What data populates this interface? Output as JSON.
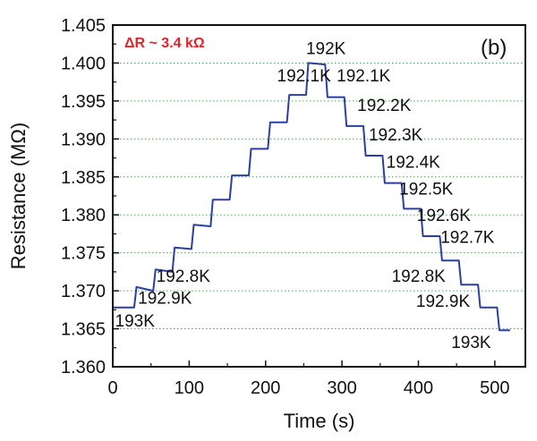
{
  "chart_data": {
    "type": "line",
    "panel_label": "(b)",
    "xlabel": "Time (s)",
    "ylabel": "Resistance (MΩ)",
    "xlim": [
      0,
      540
    ],
    "ylim": [
      1.36,
      1.405
    ],
    "x_ticks": [
      0,
      100,
      200,
      300,
      400,
      500
    ],
    "y_ticks": [
      1.36,
      1.365,
      1.37,
      1.375,
      1.38,
      1.385,
      1.39,
      1.395,
      1.4,
      1.405
    ],
    "y_tick_labels": [
      "1.360",
      "1.365",
      "1.370",
      "1.375",
      "1.380",
      "1.385",
      "1.390",
      "1.395",
      "1.400",
      "1.405"
    ],
    "grid": "horizontal dotted at y ticks",
    "colors": {
      "line": "#2a3fa5",
      "grid": "#4caf50",
      "delta_label": "#e8202a"
    },
    "delta_label": "ΔR ~ 3.4 kΩ",
    "series": [
      {
        "points": [
          [
            0,
            1.3678
          ],
          [
            28,
            1.3678
          ],
          [
            31,
            1.3705
          ],
          [
            53,
            1.37
          ],
          [
            56,
            1.3728
          ],
          [
            78,
            1.3725
          ],
          [
            81,
            1.3757
          ],
          [
            103,
            1.3755
          ],
          [
            106,
            1.3787
          ],
          [
            128,
            1.3785
          ],
          [
            131,
            1.382
          ],
          [
            153,
            1.382
          ],
          [
            156,
            1.3852
          ],
          [
            178,
            1.3852
          ],
          [
            181,
            1.3887
          ],
          [
            203,
            1.3887
          ],
          [
            206,
            1.3922
          ],
          [
            228,
            1.3922
          ],
          [
            231,
            1.3958
          ],
          [
            253,
            1.3958
          ],
          [
            256,
            1.4
          ],
          [
            278,
            1.3998
          ],
          [
            281,
            1.3955
          ],
          [
            303,
            1.3955
          ],
          [
            306,
            1.3917
          ],
          [
            328,
            1.3917
          ],
          [
            331,
            1.3878
          ],
          [
            353,
            1.3878
          ],
          [
            356,
            1.3842
          ],
          [
            378,
            1.3842
          ],
          [
            381,
            1.3808
          ],
          [
            403,
            1.3808
          ],
          [
            406,
            1.3772
          ],
          [
            428,
            1.3772
          ],
          [
            431,
            1.374
          ],
          [
            453,
            1.374
          ],
          [
            456,
            1.3708
          ],
          [
            478,
            1.3708
          ],
          [
            481,
            1.3678
          ],
          [
            503,
            1.3678
          ],
          [
            506,
            1.3648
          ],
          [
            520,
            1.3648
          ]
        ]
      }
    ],
    "annotations": [
      {
        "text": "193K",
        "x": 3,
        "y": 1.3653
      },
      {
        "text": "192.9K",
        "x": 33,
        "y": 1.3683
      },
      {
        "text": "192.8K",
        "x": 57,
        "y": 1.3712
      },
      {
        "text": "192.1K",
        "x": 215,
        "y": 1.3976
      },
      {
        "text": "192K",
        "x": 253,
        "y": 1.4012
      },
      {
        "text": "192.1K",
        "x": 293,
        "y": 1.3976
      },
      {
        "text": "192.2K",
        "x": 320,
        "y": 1.3937
      },
      {
        "text": "192.3K",
        "x": 335,
        "y": 1.3898
      },
      {
        "text": "192.4K",
        "x": 358,
        "y": 1.3862
      },
      {
        "text": "192.5K",
        "x": 375,
        "y": 1.3827
      },
      {
        "text": "192.6K",
        "x": 398,
        "y": 1.3792
      },
      {
        "text": "192.7K",
        "x": 429,
        "y": 1.3763
      },
      {
        "text": "192.8K",
        "x": 365,
        "y": 1.3712
      },
      {
        "text": "192.9K",
        "x": 397,
        "y": 1.3679
      },
      {
        "text": "193K",
        "x": 443,
        "y": 1.3625
      }
    ]
  }
}
